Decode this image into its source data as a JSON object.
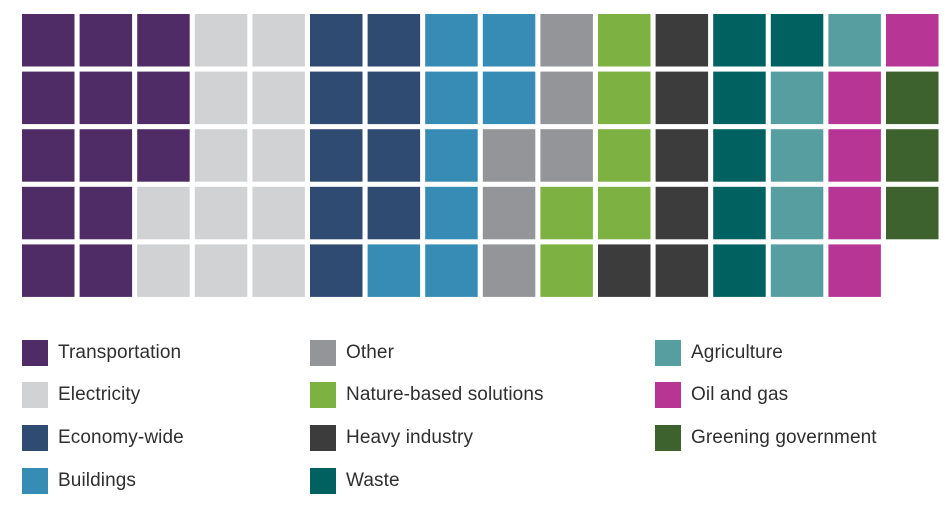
{
  "chart_data": {
    "type": "waffle",
    "unit": "tile",
    "rows": 5,
    "columns": 16,
    "fill_order": "column-major, top to bottom",
    "categories": [
      {
        "name": "Transportation",
        "count": 13,
        "color": "#4f2c66"
      },
      {
        "name": "Electricity",
        "count": 12,
        "color": "#d1d2d4"
      },
      {
        "name": "Economy-wide",
        "count": 9,
        "color": "#2f4b72"
      },
      {
        "name": "Buildings",
        "count": 8,
        "color": "#378cb5"
      },
      {
        "name": "Other",
        "count": 6,
        "color": "#939598"
      },
      {
        "name": "Nature-based solutions",
        "count": 6,
        "color": "#7db141"
      },
      {
        "name": "Heavy industry",
        "count": 6,
        "color": "#3c3c3c"
      },
      {
        "name": "Waste",
        "count": 6,
        "color": "#006260"
      },
      {
        "name": "Agriculture",
        "count": 5,
        "color": "#579ea1"
      },
      {
        "name": "Oil and gas",
        "count": 5,
        "color": "#b63595"
      },
      {
        "name": "Greening government",
        "count": 3,
        "color": "#3e622d"
      }
    ],
    "legend_position": "bottom",
    "legend_columns": [
      [
        "Transportation",
        "Electricity",
        "Economy-wide",
        "Buildings"
      ],
      [
        "Other",
        "Nature-based solutions",
        "Heavy industry",
        "Waste"
      ],
      [
        "Agriculture",
        "Oil and gas",
        "Greening government"
      ]
    ]
  }
}
